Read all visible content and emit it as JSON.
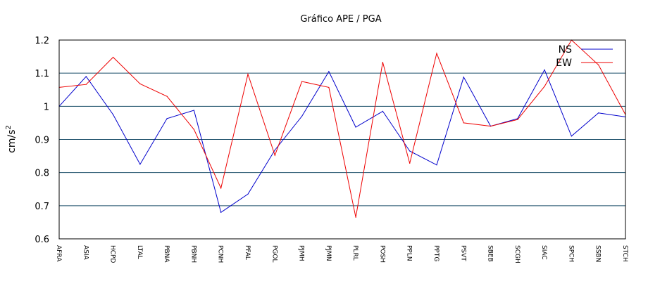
{
  "chart_data": {
    "type": "line",
    "title": "Gráfico  APE / PGA",
    "xlabel": "",
    "ylabel": "cm/s",
    "ylabel_sup": "2",
    "ylim": [
      0.6,
      1.2
    ],
    "yticks": [
      "0.6",
      "0.7",
      "0.8",
      "0.9",
      "1",
      "1.1",
      "1.2"
    ],
    "grid": "horizontal",
    "legend_position": "top-right",
    "categories": [
      "AFRA",
      "ASIA",
      "HCPD",
      "LTAL",
      "PBNA",
      "PBNH",
      "PCNH",
      "PFAL",
      "PGOL",
      "PJMH",
      "PJMN",
      "PLRL",
      "POSH",
      "PPLN",
      "PPTG",
      "PSVT",
      "SBEB",
      "SCGH",
      "SIAC",
      "SPCH",
      "SSBN",
      "STCH"
    ],
    "series": [
      {
        "name": "NS",
        "color": "#0000cc",
        "values": [
          1.0,
          1.09,
          0.975,
          0.825,
          0.963,
          0.988,
          0.68,
          0.735,
          0.868,
          0.97,
          1.105,
          0.937,
          0.985,
          0.865,
          0.823,
          1.088,
          0.94,
          0.963,
          1.11,
          0.91,
          0.98,
          0.968
        ]
      },
      {
        "name": "EW",
        "color": "#ee0000",
        "values": [
          1.057,
          1.066,
          1.148,
          1.068,
          1.03,
          0.93,
          0.753,
          1.097,
          0.852,
          1.075,
          1.057,
          0.665,
          1.133,
          0.828,
          1.16,
          0.95,
          0.94,
          0.96,
          1.06,
          1.2,
          1.125,
          0.975
        ]
      }
    ]
  }
}
